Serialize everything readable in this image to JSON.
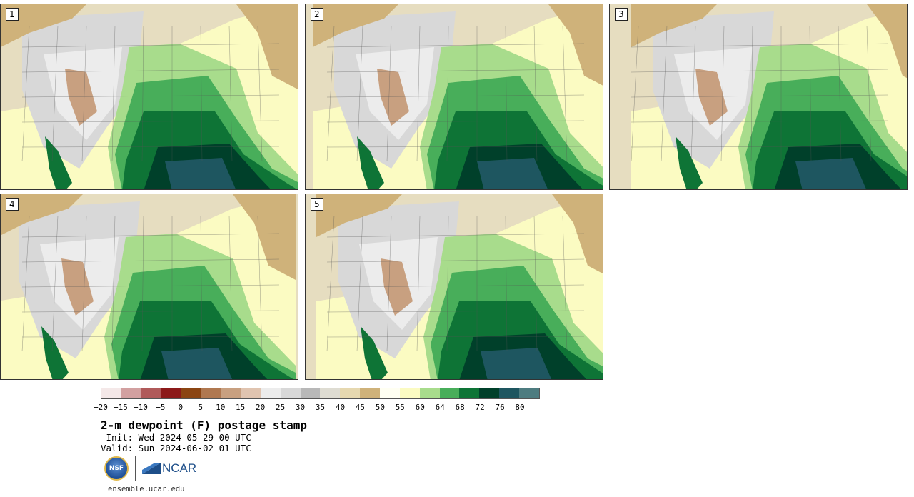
{
  "panels": [
    {
      "label": "1"
    },
    {
      "label": "2"
    },
    {
      "label": "3"
    },
    {
      "label": "4"
    },
    {
      "label": "5"
    }
  ],
  "colorbar": {
    "colors": [
      "#f4e8e8",
      "#d2a0a0",
      "#b05a5a",
      "#8c1a1a",
      "#8b4513",
      "#b07850",
      "#c8a080",
      "#e0c4b0",
      "#ececec",
      "#d8d8d8",
      "#b8b8b8",
      "#dedcd2",
      "#e6d8b0",
      "#cfb27a",
      "#fffff2",
      "#fbfbc2",
      "#a8dc8c",
      "#48ae5a",
      "#0e7436",
      "#00402a",
      "#1e5660",
      "#4e7c80"
    ],
    "ticks": [
      "−20",
      "−15",
      "−10",
      "−5",
      "0",
      "5",
      "10",
      "15",
      "20",
      "25",
      "30",
      "35",
      "40",
      "45",
      "50",
      "55",
      "60",
      "64",
      "68",
      "72",
      "76",
      "80"
    ]
  },
  "title": "2-m dewpoint (F) postage stamp",
  "init": " Init: Wed 2024-05-29 00 UTC",
  "valid": "Valid: Sun 2024-06-02 01 UTC",
  "logos": {
    "nsf": "NSF",
    "ncar": "NCAR"
  },
  "site": "ensemble.ucar.edu"
}
